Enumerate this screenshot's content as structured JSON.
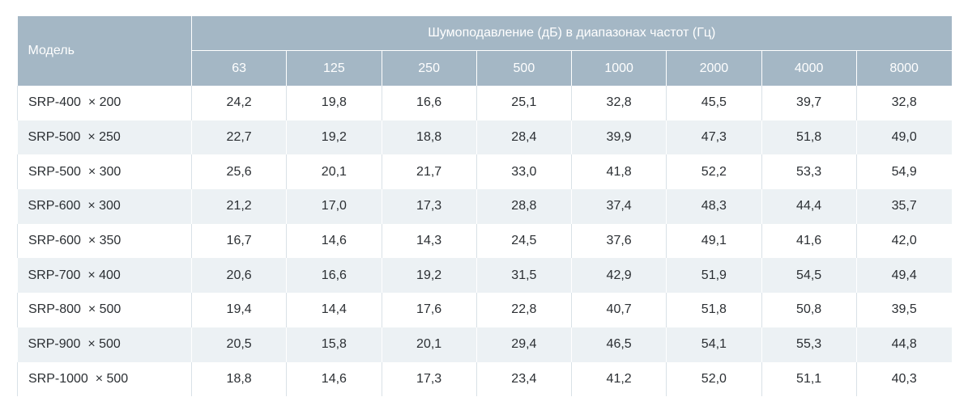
{
  "table": {
    "model_header": "Модель",
    "group_header": "Шумоподавление (дБ) в диапазонах частот (Гц)",
    "frequencies": [
      "63",
      "125",
      "250",
      "500",
      "1000",
      "2000",
      "4000",
      "8000"
    ],
    "rows": [
      {
        "model": "SRP-400  × 200",
        "values": [
          "24,2",
          "19,8",
          "16,6",
          "25,1",
          "32,8",
          "45,5",
          "39,7",
          "32,8"
        ]
      },
      {
        "model": "SRP-500  × 250",
        "values": [
          "22,7",
          "19,2",
          "18,8",
          "28,4",
          "39,9",
          "47,3",
          "51,8",
          "49,0"
        ]
      },
      {
        "model": "SRP-500  × 300",
        "values": [
          "25,6",
          "20,1",
          "21,7",
          "33,0",
          "41,8",
          "52,2",
          "53,3",
          "54,9"
        ]
      },
      {
        "model": "SRP-600  × 300",
        "values": [
          "21,2",
          "17,0",
          "17,3",
          "28,8",
          "37,4",
          "48,3",
          "44,4",
          "35,7"
        ]
      },
      {
        "model": "SRP-600  × 350",
        "values": [
          "16,7",
          "14,6",
          "14,3",
          "24,5",
          "37,6",
          "49,1",
          "41,6",
          "42,0"
        ]
      },
      {
        "model": "SRP-700  × 400",
        "values": [
          "20,6",
          "16,6",
          "19,2",
          "31,5",
          "42,9",
          "51,9",
          "54,5",
          "49,4"
        ]
      },
      {
        "model": "SRP-800  × 500",
        "values": [
          "19,4",
          "14,4",
          "17,6",
          "22,8",
          "40,7",
          "51,8",
          "50,8",
          "39,5"
        ]
      },
      {
        "model": "SRP-900  × 500",
        "values": [
          "20,5",
          "15,8",
          "20,1",
          "29,4",
          "46,5",
          "54,1",
          "55,3",
          "44,8"
        ]
      },
      {
        "model": "SRP-1000  × 500",
        "values": [
          "18,8",
          "14,6",
          "17,3",
          "23,4",
          "41,2",
          "52,0",
          "51,1",
          "40,3"
        ]
      }
    ]
  },
  "colors": {
    "header_bg": "#a4b7c5",
    "header_text": "#ffffff",
    "stripe_bg": "#ecf1f4",
    "body_text": "#2b2f33"
  }
}
